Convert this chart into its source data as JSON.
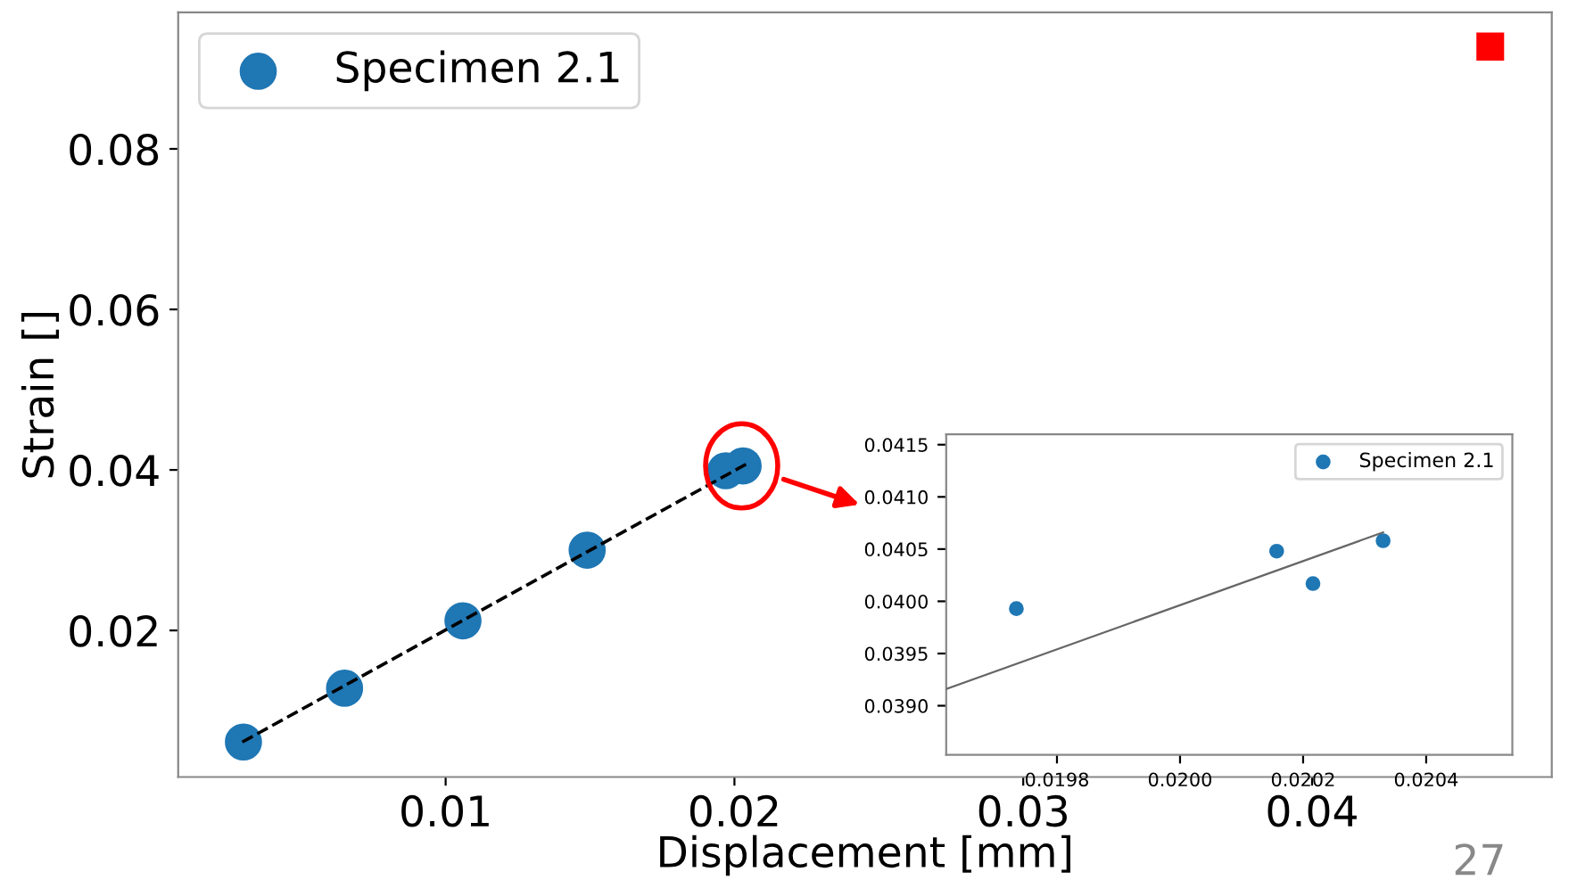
{
  "chart_data": [
    {
      "type": "scatter",
      "xlabel": "Displacement [mm]",
      "ylabel": "Strain []",
      "xlim": [
        0.00074,
        0.0483
      ],
      "ylim": [
        0.00174,
        0.097
      ],
      "xticks": [
        0.01,
        0.02,
        0.03,
        0.04
      ],
      "yticks": [
        0.02,
        0.04,
        0.06,
        0.08
      ],
      "grid": false,
      "legend": "top left",
      "series": [
        {
          "name": "Specimen 2.1",
          "color": "#1f77b4",
          "marker": "circle",
          "x": [
            0.003,
            0.0065,
            0.0106,
            0.0149,
            0.0197,
            0.0203
          ],
          "values": [
            0.0061,
            0.0128,
            0.0212,
            0.03,
            0.0399,
            0.0405
          ]
        },
        {
          "type": "line",
          "color": "#000000",
          "line_style": "dashed",
          "x": [
            0.00296,
            0.0204
          ],
          "values": [
            0.0061,
            0.0407
          ]
        }
      ],
      "annotations": [
        "27"
      ]
    },
    {
      "type": "scatter",
      "xlim": [
        0.01962,
        0.02054
      ],
      "ylim": [
        0.03853,
        0.0416
      ],
      "xticks": [
        {
          "value": 0.0198,
          "label": "0.0198"
        },
        {
          "value": 0.02,
          "label": "0.0200"
        },
        {
          "value": 0.0202,
          "label": "0.0202"
        },
        {
          "value": 0.0204,
          "label": "0.0204"
        }
      ],
      "yticks": [
        {
          "value": 0.039,
          "label": "0.0390"
        },
        0.0395,
        {
          "value": 0.04,
          "label": "0.0400"
        },
        0.0405,
        {
          "value": 0.041,
          "label": "0.0410"
        },
        0.0415
      ],
      "grid": false,
      "legend": "top right",
      "series": [
        {
          "name": "Specimen 2.1",
          "color": "#1f77b4",
          "marker": "circle",
          "x": [
            0.019734,
            0.020157,
            0.020216,
            0.02033
          ],
          "values": [
            0.03993,
            0.04048,
            0.04017,
            0.04058
          ]
        },
        {
          "type": "line",
          "color": "#666666",
          "line_style": "solid",
          "x": [
            0.01962,
            0.02033
          ],
          "values": [
            0.03916,
            0.04066
          ]
        }
      ]
    }
  ]
}
